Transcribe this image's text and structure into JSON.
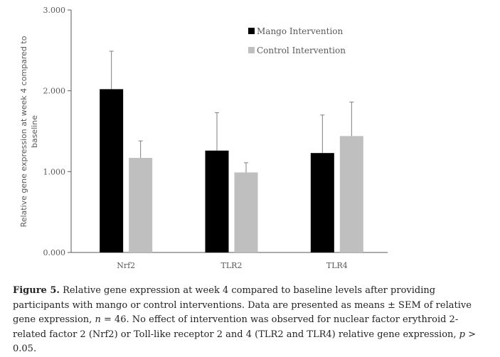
{
  "chart_data": {
    "type": "bar",
    "categories": [
      "Nrf2",
      "TLR2",
      "TLR4"
    ],
    "series": [
      {
        "name": "Mango Intervention",
        "color": "#000000",
        "values": [
          2.02,
          1.26,
          1.23
        ],
        "errors": [
          0.47,
          0.47,
          0.47
        ]
      },
      {
        "name": "Control Intervention",
        "color": "#bfbfbf",
        "values": [
          1.17,
          0.99,
          1.44
        ],
        "errors": [
          0.21,
          0.12,
          0.42
        ]
      }
    ],
    "ylabel_lines": [
      "Relative gene expression at week 4 compared to",
      "baseline"
    ],
    "ylim": [
      0,
      3
    ],
    "yticks": [
      0,
      1,
      2,
      3
    ],
    "ytick_labels": [
      "0.000",
      "1.000",
      "2.000",
      "3.000"
    ],
    "legend_position": "top-right"
  },
  "caption": {
    "label": "Figure 5.",
    "text1": "Relative gene expression at week 4 compared to baseline levels after providing participants with mango or control interventions. Data are presented as means ± SEM of relative gene expression,",
    "n_var": "n",
    "text2": "= 46. No effect of intervention was observed for nuclear factor erythroid 2-related factor 2 (Nrf2) or Toll-like receptor 2 and 4 (TLR2 and TLR4) relative gene expression,",
    "p_var": "p",
    "text3": "> 0.05."
  }
}
